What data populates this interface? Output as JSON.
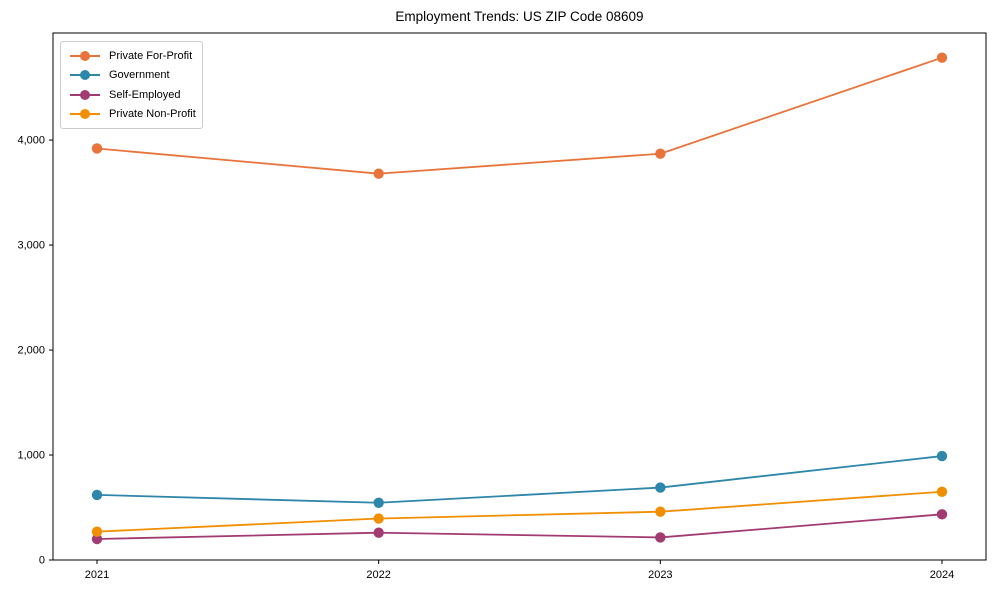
{
  "title": "Employment Trends: US ZIP Code 08609",
  "chart_data": {
    "type": "line",
    "title": "Employment Trends: US ZIP Code 08609",
    "xlabel": "",
    "ylabel": "",
    "x": [
      2021,
      2022,
      2023,
      2024
    ],
    "xtick_labels": [
      "2021",
      "2022",
      "2023",
      "2024"
    ],
    "yticks": [
      0,
      1000,
      2000,
      3000,
      4000
    ],
    "ytick_labels": [
      "0",
      "1,000",
      "2,000",
      "3,000",
      "4,000"
    ],
    "ylim": [
      0,
      5020
    ],
    "grid": false,
    "legend_position": "upper left",
    "marker": "circle",
    "series": [
      {
        "name": "Private For-Profit",
        "color": "#E8743B",
        "values": [
          3920,
          3680,
          3870,
          4785
        ]
      },
      {
        "name": "Government",
        "color": "#2E86AB",
        "values": [
          620,
          545,
          690,
          990
        ]
      },
      {
        "name": "Self-Employed",
        "color": "#A23B72",
        "values": [
          200,
          260,
          215,
          435
        ]
      },
      {
        "name": "Private Non-Profit",
        "color": "#F18F01",
        "values": [
          270,
          395,
          460,
          650
        ]
      }
    ]
  }
}
